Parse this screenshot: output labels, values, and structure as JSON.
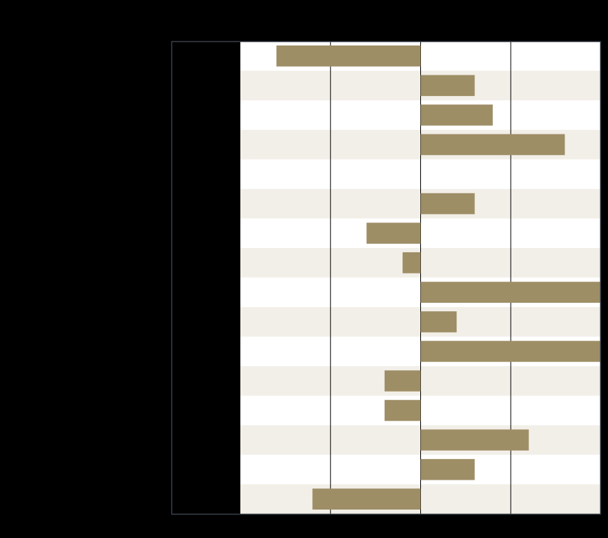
{
  "chart_data": {
    "type": "bar",
    "orientation": "horizontal",
    "title": "",
    "xlabel": "",
    "ylabel": "",
    "categories": [
      "",
      "",
      "",
      "",
      "",
      "",
      "",
      "",
      "",
      "",
      "",
      "",
      "",
      "",
      "",
      ""
    ],
    "values": [
      -4,
      1.5,
      2,
      4,
      0,
      1.5,
      -1.5,
      -0.5,
      5,
      1,
      5,
      -1,
      -1,
      3,
      1.5,
      -3
    ],
    "xlim": [
      -5,
      5
    ],
    "x_gridlines": [
      -2.5,
      0,
      2.5
    ],
    "grid": true,
    "legend": "none",
    "colors": {
      "bar": "#9E8E66",
      "band_alt": "#F2EFE8",
      "band": "#FFFFFF",
      "label_panel": "#000000",
      "gridline": "#000000",
      "frame": "#3A3F4A",
      "background": "#000000"
    }
  }
}
